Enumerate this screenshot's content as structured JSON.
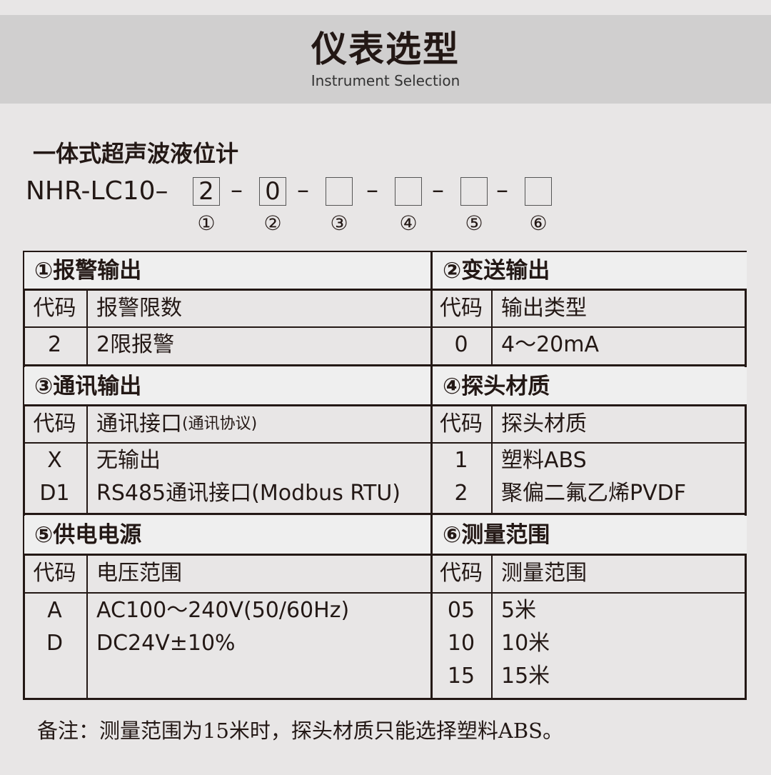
{
  "header": {
    "title": "仪表选型",
    "subtitle": "Instrument Selection"
  },
  "product": {
    "name": "一体式超声波液位计",
    "model_prefix": "NHR-LC10",
    "separator": "–",
    "slots": [
      {
        "value": "2",
        "label": "①"
      },
      {
        "value": "0",
        "label": "②"
      },
      {
        "value": "",
        "label": "③"
      },
      {
        "value": "",
        "label": "④"
      },
      {
        "value": "",
        "label": "⑤"
      },
      {
        "value": "",
        "label": "⑥"
      }
    ]
  },
  "sections": [
    {
      "title": "①报警输出",
      "code_header": "代码",
      "desc_header": "报警限数",
      "rows": [
        {
          "code": "2",
          "desc": "2限报警"
        }
      ]
    },
    {
      "title": "②变送输出",
      "code_header": "代码",
      "desc_header": "输出类型",
      "rows": [
        {
          "code": "0",
          "desc": "4～20mA"
        }
      ]
    },
    {
      "title": "③通讯输出",
      "code_header": "代码",
      "desc_header": "通讯接口",
      "desc_header_note": "(通讯协议)",
      "rows": [
        {
          "code": "X",
          "desc": "无输出"
        },
        {
          "code": "D1",
          "desc": "RS485通讯接口(Modbus RTU)"
        }
      ]
    },
    {
      "title": "④探头材质",
      "code_header": "代码",
      "desc_header": "探头材质",
      "rows": [
        {
          "code": "1",
          "desc": "塑料ABS"
        },
        {
          "code": "2",
          "desc": "聚偏二氟乙烯PVDF"
        }
      ]
    },
    {
      "title": "⑤供电电源",
      "code_header": "代码",
      "desc_header": "电压范围",
      "rows": [
        {
          "code": "A",
          "desc": "AC100～240V(50/60Hz)"
        },
        {
          "code": "D",
          "desc": "DC24V±10%"
        }
      ]
    },
    {
      "title": "⑥测量范围",
      "code_header": "代码",
      "desc_header": "测量范围",
      "rows": [
        {
          "code": "05",
          "desc": "5米"
        },
        {
          "code": "10",
          "desc": "10米"
        },
        {
          "code": "15",
          "desc": "15米"
        }
      ]
    }
  ],
  "note": "备注：测量范围为15米时，探头材质只能选择塑料ABS。"
}
